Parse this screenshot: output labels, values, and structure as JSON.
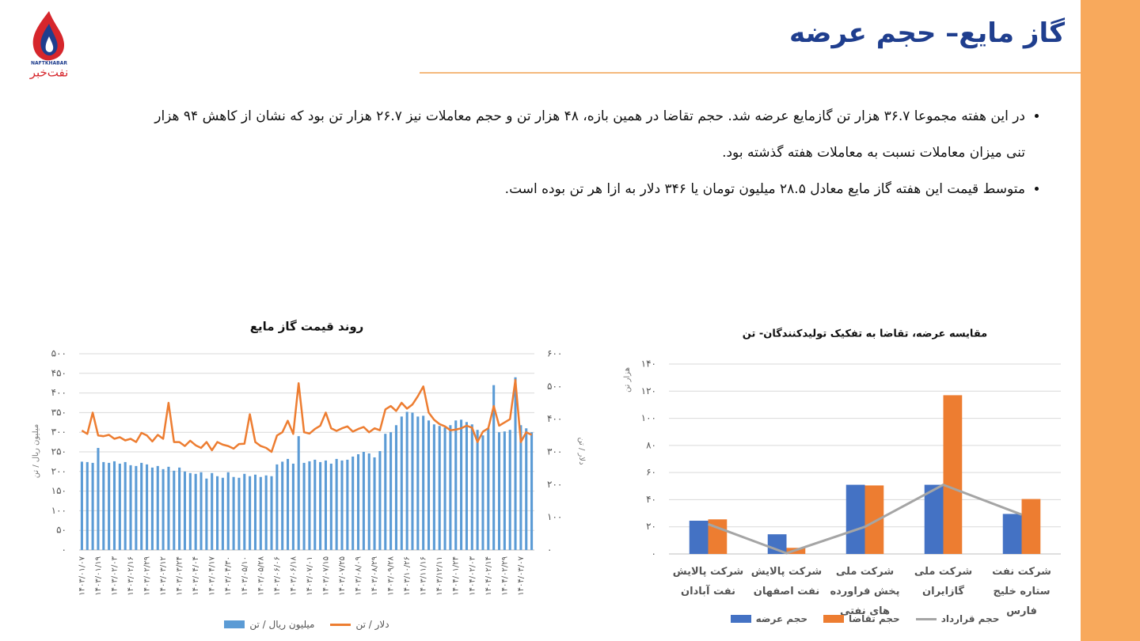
{
  "header": {
    "title": "گاز مایع– حجم عرضه",
    "logo_en": "NAFTKHABAR",
    "logo_fa": "نفت‌خبر"
  },
  "bullets": [
    "در این هفته مجموعا ۳۶.۷ هزار تن گازمایع عرضه شد. حجم تقاضا در همین بازه، ۴۸ هزار تن و حجم معاملات نیز ۲۶.۷ هزار تن بود که نشان از کاهش ۹۴ هزار تنی میزان معاملات نسبت به معاملات هفته گذشته بود.",
    "متوسط قیمت این هفته گاز مایع معادل ۲۸.۵ میلیون تومان یا ۳۴۶ دلار به ازا هر تن بوده است."
  ],
  "chart_data": [
    {
      "type": "combo",
      "title": "روند قیمت گاز مایع",
      "y_label": "میلیون ریال / تن",
      "y2_label": "دلار / تن",
      "grid": true,
      "categories": [
        "۱۴۰۳/۰۱/۰۷",
        null,
        null,
        "۱۴۰۳/۰۱/۱۹",
        null,
        null,
        "۱۴۰۳/۰۲/۰۳",
        null,
        null,
        "۱۴۰۳/۰۲/۱۶",
        null,
        null,
        "۱۴۰۳/۰۲/۲۹",
        null,
        null,
        "۱۴۰۳/۰۳/۱۲",
        null,
        null,
        "۱۴۰۳/۰۳/۲۴",
        null,
        null,
        "۱۴۰۳/۰۴/۰۴",
        null,
        null,
        "۱۴۰۳/۰۴/۱۷",
        null,
        null,
        "۱۴۰۳/۰۴/۳۰",
        null,
        null,
        "۱۴۰۳/۰۵/۱۰",
        null,
        null,
        "۱۴۰۳/۰۵/۲۸",
        null,
        null,
        "۱۴۰۳/۰۶/۰۶",
        null,
        null,
        "۱۴۰۳/۰۶/۱۸",
        null,
        null,
        "۱۴۰۳/۰۷/۰۱",
        null,
        null,
        "۱۴۰۳/۰۷/۱۵",
        null,
        null,
        "۱۴۰۳/۰۷/۲۵",
        null,
        null,
        "۱۴۰۳/۰۸/۰۹",
        null,
        null,
        "۱۴۰۳/۰۸/۲۹",
        null,
        null,
        "۱۴۰۳/۰۹/۲۸",
        null,
        null,
        "۱۴۰۳/۱۰/۲۶",
        null,
        null,
        "۱۴۰۳/۱۱/۱۶",
        null,
        null,
        "۱۴۰۳/۱۲/۱۱",
        null,
        null,
        "۱۴۰۴/۰۱/۲۴",
        null,
        null,
        "۱۴۰۴/۰۲/۰۳",
        null,
        null,
        "۱۴۰۴/۰۲/۱۴",
        null,
        null,
        "۱۴۰۴/۰۲/۲۹",
        null,
        null,
        "۱۴۰۴/۰۳/۰۷",
        null,
        null
      ],
      "series": [
        {
          "name": "میلیون ریال / تن",
          "type": "bar",
          "color": "#5b9bd5",
          "values": [
            225,
            224,
            222,
            260,
            224,
            222,
            226,
            220,
            224,
            216,
            214,
            222,
            218,
            210,
            214,
            206,
            212,
            202,
            210,
            200,
            196,
            194,
            198,
            182,
            196,
            188,
            184,
            198,
            186,
            184,
            194,
            188,
            192,
            186,
            190,
            188,
            218,
            225,
            232,
            220,
            290,
            222,
            226,
            230,
            224,
            228,
            220,
            232,
            228,
            230,
            238,
            244,
            250,
            246,
            236,
            252,
            296,
            300,
            318,
            340,
            352,
            350,
            340,
            342,
            330,
            320,
            316,
            312,
            318,
            330,
            332,
            326,
            320,
            306,
            292,
            310,
            420,
            300,
            302,
            306,
            440,
            318,
            310,
            300
          ]
        },
        {
          "name": "دلار / تن",
          "type": "line",
          "axis": "y2",
          "color": "#ed7d31",
          "values": [
            365,
            355,
            420,
            350,
            348,
            352,
            340,
            345,
            335,
            340,
            330,
            358,
            350,
            332,
            352,
            340,
            450,
            330,
            330,
            318,
            334,
            320,
            312,
            330,
            305,
            330,
            322,
            318,
            310,
            324,
            325,
            415,
            330,
            318,
            312,
            300,
            350,
            360,
            395,
            355,
            510,
            360,
            356,
            370,
            380,
            420,
            372,
            364,
            372,
            378,
            362,
            370,
            376,
            360,
            372,
            366,
            430,
            440,
            425,
            450,
            432,
            445,
            470,
            500,
            420,
            398,
            385,
            378,
            366,
            368,
            372,
            380,
            374,
            330,
            362,
            372,
            440,
            380,
            390,
            400,
            520,
            330,
            360,
            352
          ]
        }
      ],
      "ylim": [
        0,
        500
      ],
      "yticks": [
        {
          "value": 0,
          "label": "۰"
        },
        {
          "value": 50,
          "label": "۵۰"
        },
        {
          "value": 100,
          "label": "۱۰۰"
        },
        {
          "value": 150,
          "label": "۱۵۰"
        },
        {
          "value": 200,
          "label": "۲۰۰"
        },
        {
          "value": 250,
          "label": "۲۵۰"
        },
        {
          "value": 300,
          "label": "۳۰۰"
        },
        {
          "value": 350,
          "label": "۳۵۰"
        },
        {
          "value": 400,
          "label": "۴۰۰"
        },
        {
          "value": 450,
          "label": "۴۵۰"
        },
        {
          "value": 500,
          "label": "۵۰۰"
        }
      ],
      "y2lim": [
        0,
        600
      ],
      "y2ticks": [
        {
          "value": 0,
          "label": "۰"
        },
        {
          "value": 100,
          "label": "۱۰۰"
        },
        {
          "value": 200,
          "label": "۲۰۰"
        },
        {
          "value": 300,
          "label": "۳۰۰"
        },
        {
          "value": 400,
          "label": "۴۰۰"
        },
        {
          "value": 500,
          "label": "۵۰۰"
        },
        {
          "value": 600,
          "label": "۶۰۰"
        }
      ]
    },
    {
      "type": "combo",
      "title": "مقایسه عرضه، تقاضا به تفکیک تولیدکنندگان- تن",
      "y_label": "هزار تن",
      "grid": true,
      "categories": [
        "شرکت پالایش نفت آبادان",
        "شرکت پالایش نفت اصفهان",
        "شرکت ملی پخش فراورده های نفتی",
        "شرکت ملی گازایران",
        "شرکت نفت ستاره خلیج فارس"
      ],
      "series": [
        {
          "name": "حجم عرضه",
          "type": "bar",
          "color": "#4472c4",
          "values": [
            24.5,
            14.5,
            51,
            51,
            29.5
          ]
        },
        {
          "name": "حجم تقاضا",
          "type": "bar",
          "color": "#ed7d31",
          "values": [
            25.5,
            4.5,
            50.5,
            117,
            40.5
          ]
        },
        {
          "name": "حجم قرارداد",
          "type": "line",
          "color": "#a5a5a5",
          "values": [
            22,
            0.5,
            20,
            51,
            29
          ]
        }
      ],
      "ylim": [
        0,
        140
      ],
      "yticks": [
        {
          "value": 0,
          "label": "۰"
        },
        {
          "value": 20,
          "label": "۲۰"
        },
        {
          "value": 40,
          "label": "۴۰"
        },
        {
          "value": 60,
          "label": "۶۰"
        },
        {
          "value": 80,
          "label": "۸۰"
        },
        {
          "value": 100,
          "label": "۱۰۰"
        },
        {
          "value": 120,
          "label": "۱۲۰"
        },
        {
          "value": 140,
          "label": "۱۴۰"
        }
      ]
    }
  ]
}
